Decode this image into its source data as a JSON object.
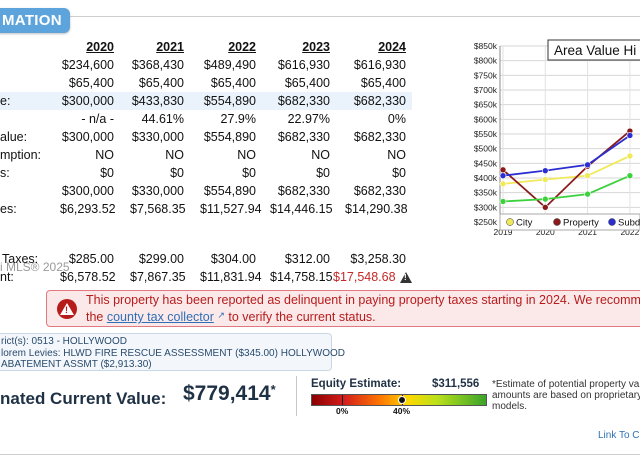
{
  "section": {
    "title": "MATION"
  },
  "tax_table": {
    "years": [
      "2020",
      "2021",
      "2022",
      "2023",
      "2024"
    ],
    "rows": [
      {
        "label": "",
        "values": [
          "$234,600",
          "$368,430",
          "$489,490",
          "$616,930",
          "$616,930"
        ],
        "highlight": false
      },
      {
        "label": "",
        "values": [
          "$65,400",
          "$65,400",
          "$65,400",
          "$65,400",
          "$65,400"
        ],
        "highlight": false
      },
      {
        "label": "e:",
        "values": [
          "$300,000",
          "$433,830",
          "$554,890",
          "$682,330",
          "$682,330"
        ],
        "highlight": true
      },
      {
        "label": "",
        "values": [
          "- n/a -",
          "44.61%",
          "27.9%",
          "22.97%",
          "0%"
        ],
        "highlight": false
      },
      {
        "label": "alue:",
        "values": [
          "$300,000",
          "$330,000",
          "$554,890",
          "$682,330",
          "$682,330"
        ],
        "highlight": false
      },
      {
        "label": "mption:",
        "values": [
          "NO",
          "NO",
          "NO",
          "NO",
          "NO"
        ],
        "highlight": false
      },
      {
        "label": "s:",
        "values": [
          "$0",
          "$0",
          "$0",
          "$0",
          "$0"
        ],
        "highlight": false
      },
      {
        "label": "",
        "values": [
          "$300,000",
          "$330,000",
          "$554,890",
          "$682,330",
          "$682,330"
        ],
        "highlight": false
      },
      {
        "label": "es:",
        "values": [
          "$6,293.52",
          "$7,568.35",
          "$11,527.94",
          "$14,446.15",
          "$14,290.38"
        ],
        "highlight": false
      }
    ],
    "mls_note": "i MLS® 2025",
    "extra_rows": [
      {
        "label": "Taxes:",
        "values": [
          "$285.00",
          "$299.00",
          "$304.00",
          "$312.00",
          "$3,258.30"
        ]
      },
      {
        "label": "nt:",
        "values": [
          "$6,578.52",
          "$7,867.35",
          "$11,831.94",
          "$14,758.15",
          "$17,548.68"
        ]
      }
    ]
  },
  "alert": {
    "line1": "This property has been reported as delinquent in paying property taxes starting in 2024. We recommen",
    "line2_prefix": "the ",
    "link": "county tax collector",
    "line2_suffix": " to verify the current status."
  },
  "district": {
    "line1": "rict(s): 0513 - HOLLYWOOD",
    "line2": "lorem Levies: HLWD FIRE RESCUE ASSESSMENT ($345.00) HOLLYWOOD",
    "line3": "ABATEMENT ASSMT ($2,913.30)"
  },
  "estimate": {
    "label": "nated Current Value:",
    "value": "$779,414",
    "star": "*"
  },
  "equity": {
    "label": "Equity Estimate:",
    "value": "$311,556",
    "marker_fraction": 0.52,
    "tick_labels": [
      "0%",
      "40%"
    ],
    "note": "*Estimate of potential property va amounts are based on proprietary models."
  },
  "link_to": "Link To Co",
  "chart_data": {
    "type": "line",
    "title": "Area Value Hi",
    "categories": [
      "2019",
      "2020",
      "2021",
      "2022"
    ],
    "y_ticks": [
      "$250k",
      "$300k",
      "$350k",
      "$400k",
      "$450k",
      "$500k",
      "$550k",
      "$600k",
      "$650k",
      "$700k",
      "$750k",
      "$800k",
      "$850k"
    ],
    "ylim": [
      250000,
      850000
    ],
    "grid": true,
    "legend_position": "bottom",
    "series": [
      {
        "name": "City",
        "color": "#f0e95a",
        "values": [
          380000,
          395000,
          408000,
          475000
        ]
      },
      {
        "name": "Property",
        "color": "#8b1a1a",
        "values": [
          428000,
          300000,
          440000,
          560000
        ]
      },
      {
        "name": "Subdivi",
        "color": "#2b2fd1",
        "values": [
          408000,
          425000,
          445000,
          545000
        ]
      },
      {
        "name": "",
        "color": "#3ed13e",
        "values": [
          320000,
          328000,
          345000,
          408000
        ]
      }
    ]
  }
}
